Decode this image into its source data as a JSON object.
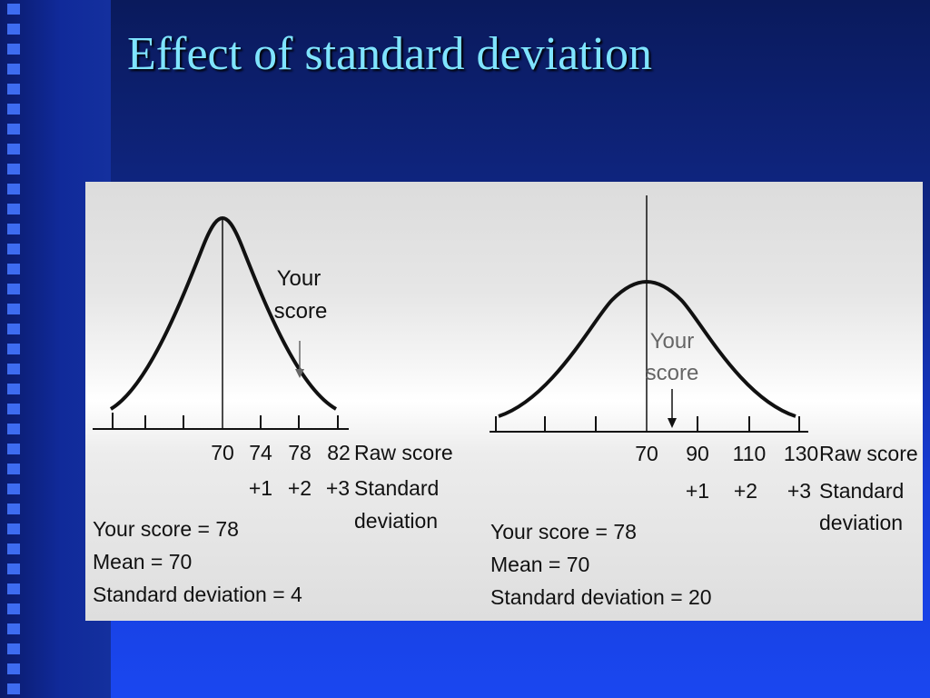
{
  "slide": {
    "title": "Effect of standard deviation"
  },
  "panels": [
    {
      "id": "left",
      "raw_scores": [
        "70",
        "74",
        "78",
        "82"
      ],
      "raw_label": "Raw score",
      "sd_marks": [
        "+1",
        "+2",
        "+3"
      ],
      "sd_label_line1": "Standard",
      "sd_label_line2": "deviation",
      "your_score_label_line1": "Your",
      "your_score_label_line2": "score",
      "stats": [
        "Your score = 78",
        "Mean = 70",
        "Standard deviation = 4"
      ],
      "mean": 70,
      "sd": 4,
      "your_score": 78
    },
    {
      "id": "right",
      "raw_scores": [
        "70",
        "90",
        "110",
        "130"
      ],
      "raw_label": "Raw score",
      "sd_marks": [
        "+1",
        "+2",
        "+3"
      ],
      "sd_label_line1": "Standard",
      "sd_label_line2": "deviation",
      "your_score_label_line1": "Your",
      "your_score_label_line2": "score",
      "stats": [
        "Your score = 78",
        "Mean = 70",
        "Standard deviation = 20"
      ],
      "mean": 70,
      "sd": 20,
      "your_score": 78
    }
  ]
}
